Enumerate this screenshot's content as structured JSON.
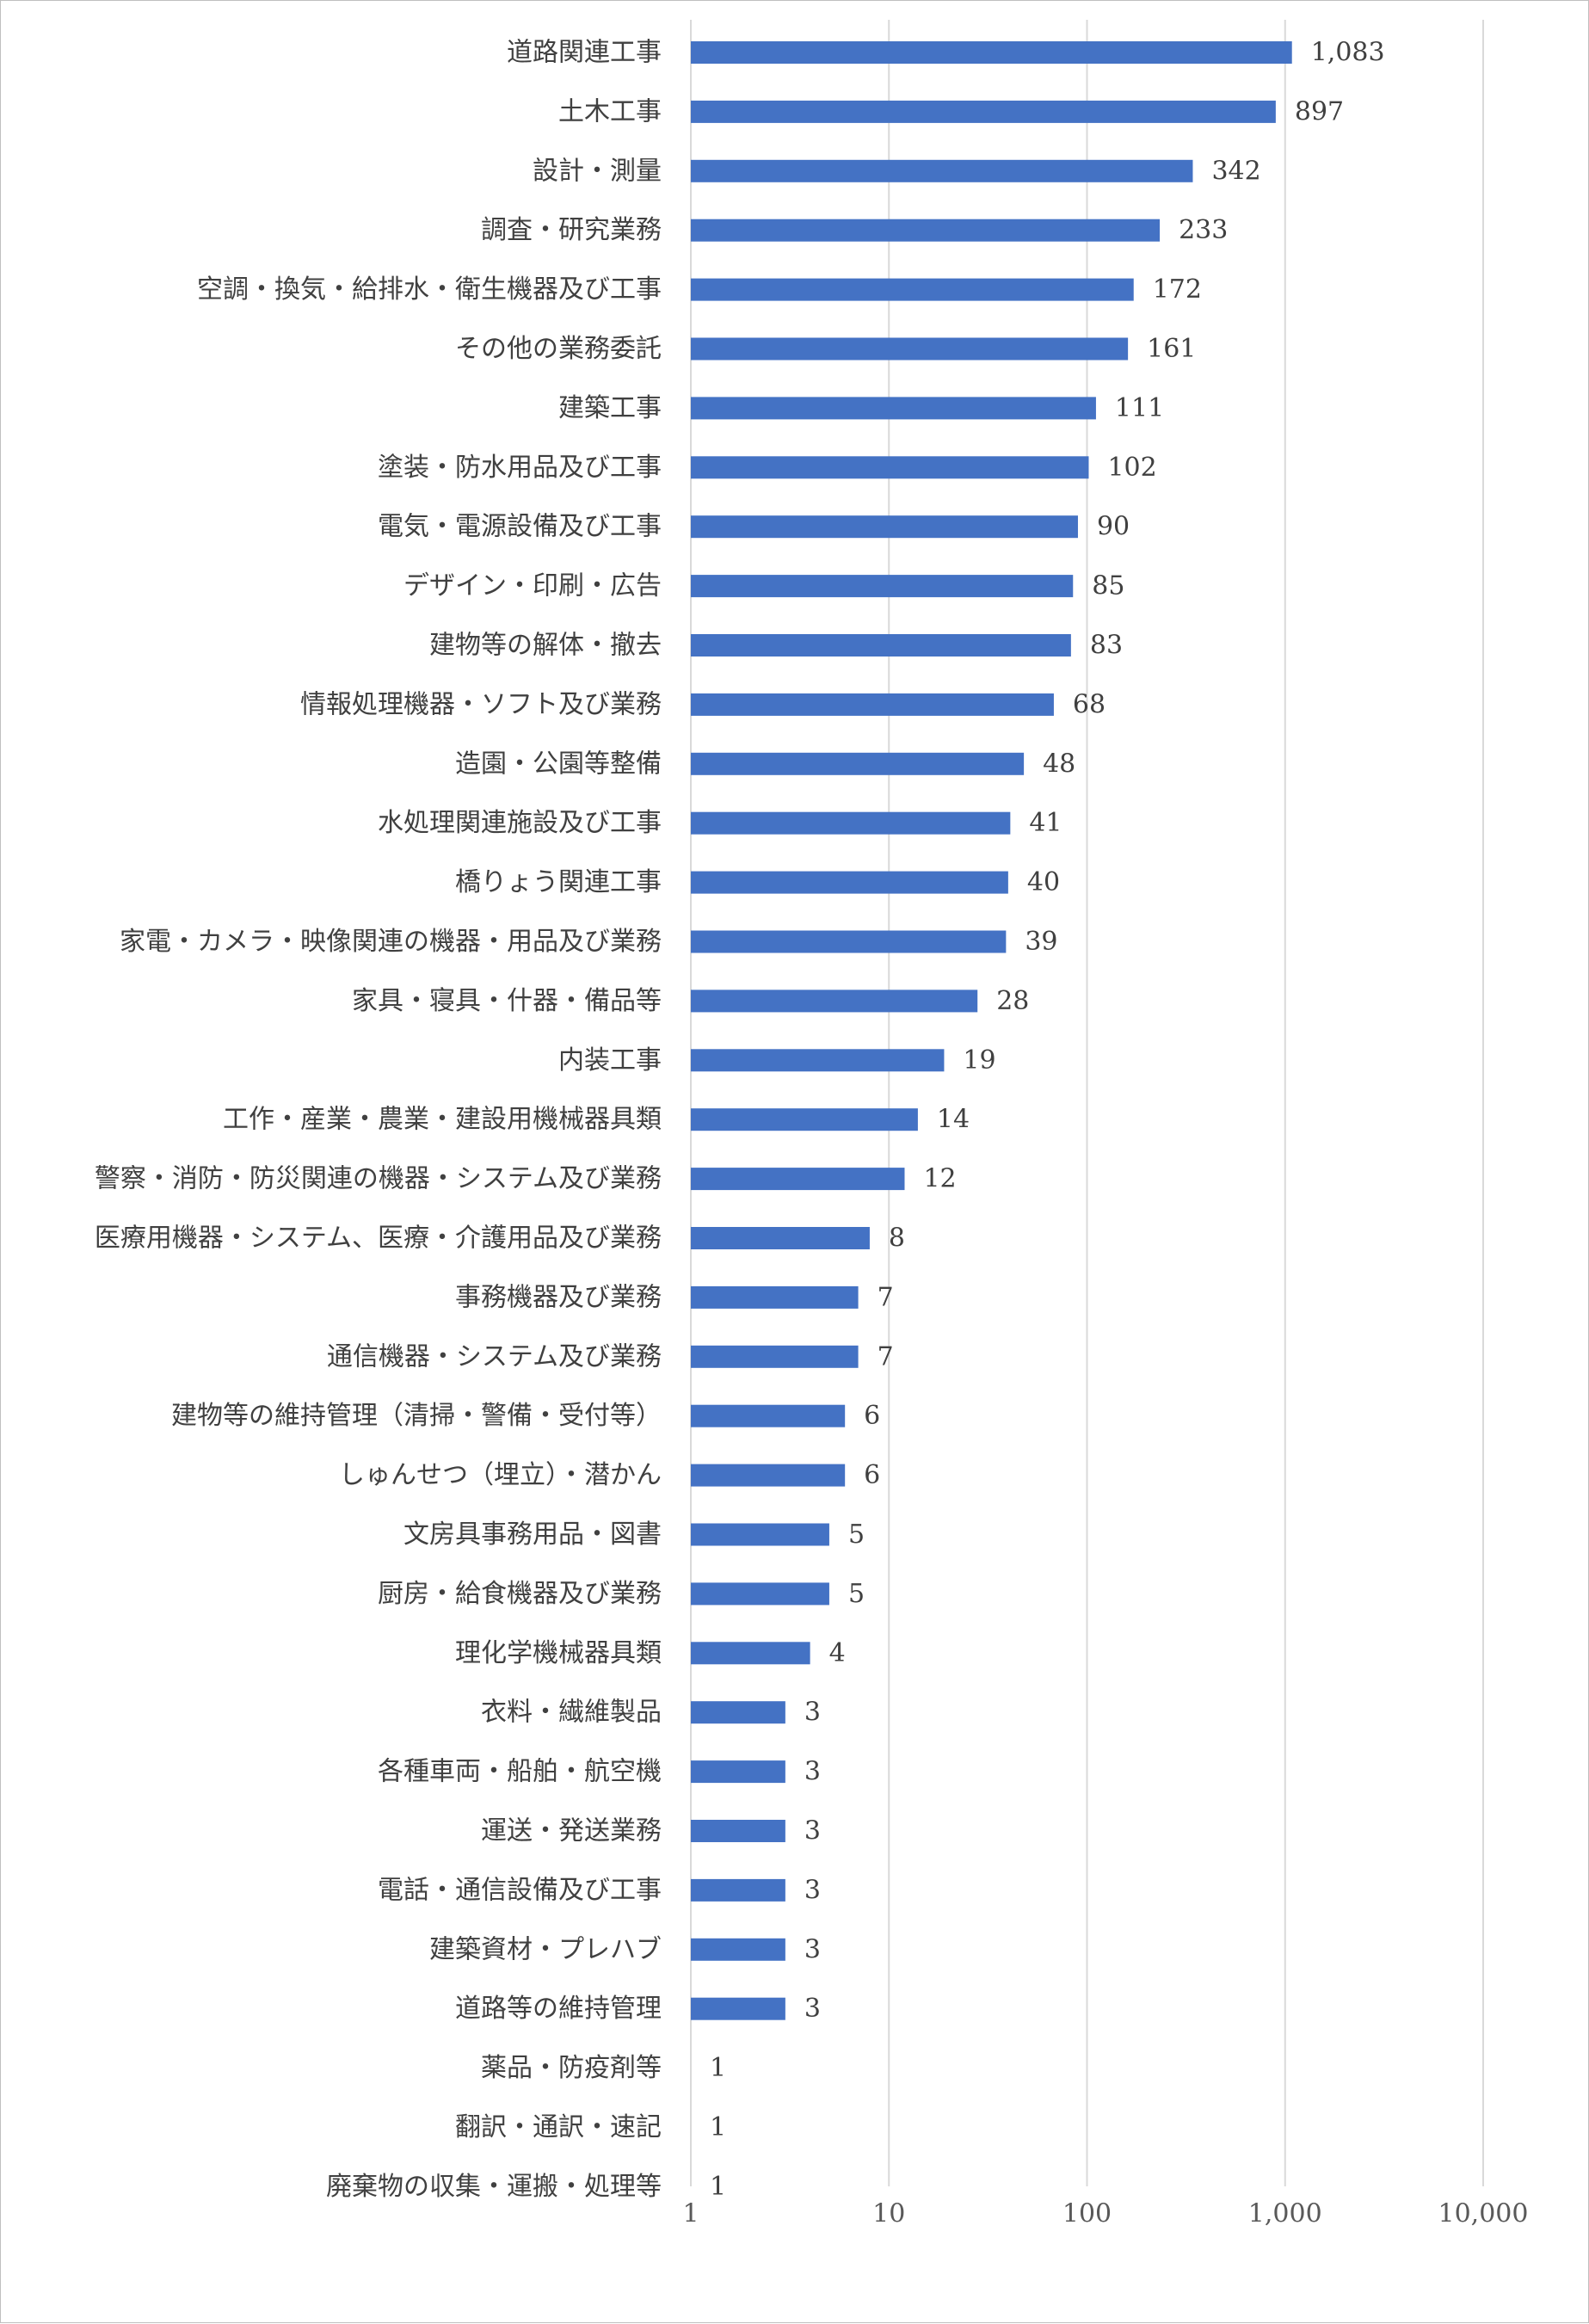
{
  "chart_data": {
    "type": "bar",
    "orientation": "horizontal",
    "x_scale": "log",
    "xlim": [
      1,
      10000
    ],
    "x_ticks": [
      1,
      10,
      100,
      1000,
      10000
    ],
    "x_tick_labels": [
      "1",
      "10",
      "100",
      "1,000",
      "10,000"
    ],
    "grid": true,
    "legend": "none",
    "bar_color": "#4472c4",
    "categories": [
      "道路関連工事",
      "土木工事",
      "設計・測量",
      "調査・研究業務",
      "空調・換気・給排水・衛生機器及び工事",
      "その他の業務委託",
      "建築工事",
      "塗装・防水用品及び工事",
      "電気・電源設備及び工事",
      "デザイン・印刷・広告",
      "建物等の解体・撤去",
      "情報処理機器・ソフト及び業務",
      "造園・公園等整備",
      "水処理関連施設及び工事",
      "橋りょう関連工事",
      "家電・カメラ・映像関連の機器・用品及び業務",
      "家具・寝具・什器・備品等",
      "内装工事",
      "工作・産業・農業・建設用機械器具類",
      "警察・消防・防災関連の機器・システム及び業務",
      "医療用機器・システム、医療・介護用品及び業務",
      "事務機器及び業務",
      "通信機器・システム及び業務",
      "建物等の維持管理（清掃・警備・受付等）",
      "しゅんせつ（埋立）・潜かん",
      "文房具事務用品・図書",
      "厨房・給食機器及び業務",
      "理化学機械器具類",
      "衣料・繊維製品",
      "各種車両・船舶・航空機",
      "運送・発送業務",
      "電話・通信設備及び工事",
      "建築資材・プレハブ",
      "道路等の維持管理",
      "薬品・防疫剤等",
      "翻訳・通訳・速記",
      "廃棄物の収集・運搬・処理等"
    ],
    "values": [
      1083,
      897,
      342,
      233,
      172,
      161,
      111,
      102,
      90,
      85,
      83,
      68,
      48,
      41,
      40,
      39,
      28,
      19,
      14,
      12,
      8,
      7,
      7,
      6,
      6,
      5,
      5,
      4,
      3,
      3,
      3,
      3,
      3,
      3,
      1,
      1,
      1
    ],
    "value_labels": [
      "1,083",
      "897",
      "342",
      "233",
      "172",
      "161",
      "111",
      "102",
      "90",
      "85",
      "83",
      "68",
      "48",
      "41",
      "40",
      "39",
      "28",
      "19",
      "14",
      "12",
      "8",
      "7",
      "7",
      "6",
      "6",
      "5",
      "5",
      "4",
      "3",
      "3",
      "3",
      "3",
      "3",
      "3",
      "1",
      "1",
      "1"
    ]
  }
}
